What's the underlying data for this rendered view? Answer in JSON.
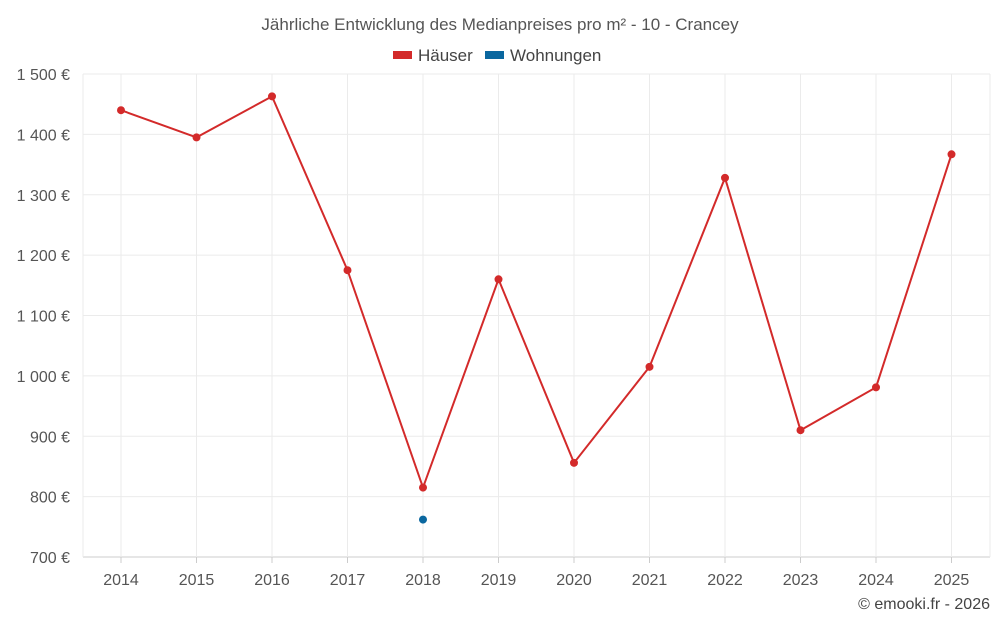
{
  "chart_data": {
    "type": "line",
    "title": "Jährliche Entwicklung des Medianpreises pro m² - 10 - Crancey",
    "categories": [
      "2014",
      "2015",
      "2016",
      "2017",
      "2018",
      "2019",
      "2020",
      "2021",
      "2022",
      "2023",
      "2024",
      "2025"
    ],
    "series": [
      {
        "name": "Häuser",
        "color": "#d32a2a",
        "values": [
          1440,
          1395,
          1463,
          1175,
          815,
          1160,
          856,
          1015,
          1328,
          910,
          981,
          1367
        ]
      },
      {
        "name": "Wohnungen",
        "color": "#0a679f",
        "values": [
          null,
          null,
          null,
          null,
          762,
          null,
          null,
          null,
          null,
          null,
          null,
          null
        ]
      }
    ],
    "ylim": [
      700,
      1500
    ],
    "yticks": [
      700,
      800,
      900,
      1000,
      1100,
      1200,
      1300,
      1400,
      1500
    ],
    "ytick_labels": [
      "700 €",
      "800 €",
      "900 €",
      "1 000 €",
      "1 100 €",
      "1 200 €",
      "1 300 €",
      "1 400 €",
      "1 500 €"
    ],
    "xlabel": "",
    "ylabel": "",
    "grid": true,
    "legend_position": "top-center"
  },
  "credit": "© emooki.fr - 2026"
}
